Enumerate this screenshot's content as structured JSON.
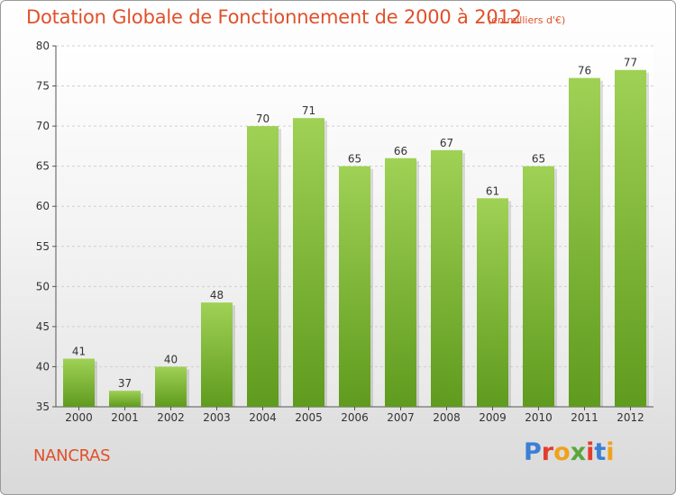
{
  "title": "Dotation Globale de Fonctionnement de 2000 à 2012",
  "unit": "(en milliers d'€)",
  "commune": "NANCRAS",
  "logo": {
    "text": "Proxiti",
    "colors": [
      "#3a7fd5",
      "#e33c2e",
      "#f0a21c",
      "#5aa63b",
      "#e33c2e",
      "#3a7fd5",
      "#f0a21c"
    ]
  },
  "colors": {
    "accent": "#e0502a",
    "bar_top": "#9fd155",
    "bar_bottom": "#5f9b1e"
  },
  "chart_data": {
    "type": "bar",
    "categories": [
      "2000",
      "2001",
      "2002",
      "2003",
      "2004",
      "2005",
      "2006",
      "2007",
      "2008",
      "2009",
      "2010",
      "2011",
      "2012"
    ],
    "values": [
      41,
      37,
      40,
      48,
      70,
      71,
      65,
      66,
      67,
      61,
      65,
      76,
      77
    ],
    "ylim": [
      35,
      80
    ],
    "yticks": [
      35,
      40,
      45,
      50,
      55,
      60,
      65,
      70,
      75,
      80
    ],
    "grid": true
  }
}
